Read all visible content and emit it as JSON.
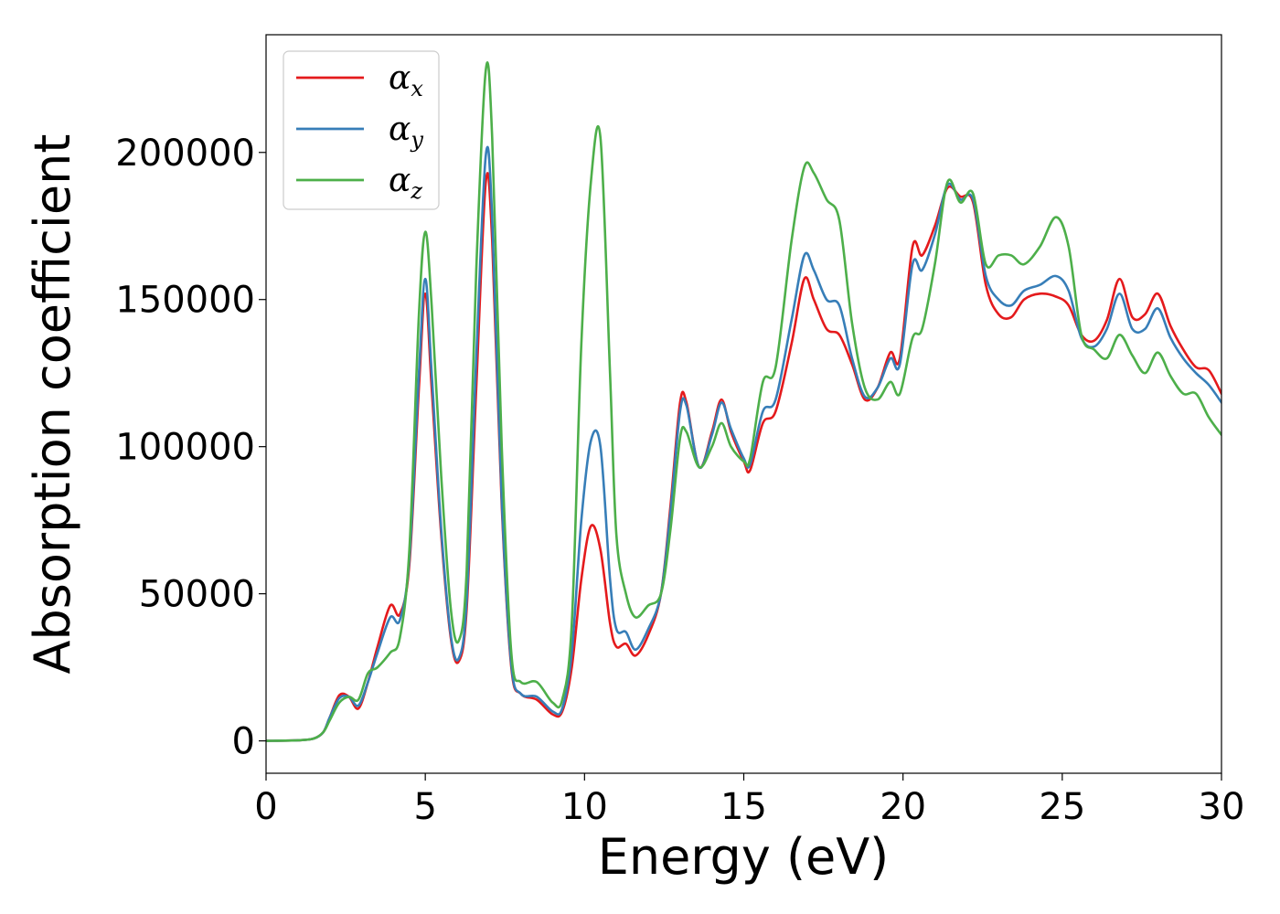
{
  "chart_data": {
    "type": "line",
    "title": "",
    "xlabel": "Energy (eV)",
    "ylabel": "Absorption coefficient",
    "xlim": [
      0,
      30
    ],
    "ylim": [
      -11000,
      240000
    ],
    "x_ticks": [
      0,
      5,
      10,
      15,
      20,
      25,
      30
    ],
    "x_tick_labels": [
      "0",
      "5",
      "10",
      "15",
      "20",
      "25",
      "30"
    ],
    "y_ticks": [
      0,
      50000,
      100000,
      150000,
      200000
    ],
    "y_tick_labels": [
      "0",
      "50000",
      "100000",
      "150000",
      "200000"
    ],
    "grid": false,
    "legend_position": "top-left",
    "series": [
      {
        "name": "α",
        "subscript": "x",
        "color": "#e41a1c",
        "points": [
          [
            0,
            0
          ],
          [
            1,
            200
          ],
          [
            1.5,
            800
          ],
          [
            1.8,
            3000
          ],
          [
            2,
            8000
          ],
          [
            2.3,
            15500
          ],
          [
            2.6,
            15000
          ],
          [
            2.9,
            11000
          ],
          [
            3.2,
            20000
          ],
          [
            3.5,
            32000
          ],
          [
            3.9,
            46000
          ],
          [
            4.2,
            43000
          ],
          [
            4.5,
            60000
          ],
          [
            4.8,
            120000
          ],
          [
            5.0,
            152000
          ],
          [
            5.2,
            120000
          ],
          [
            5.5,
            70000
          ],
          [
            5.8,
            35000
          ],
          [
            6.05,
            27000
          ],
          [
            6.3,
            45000
          ],
          [
            6.6,
            120000
          ],
          [
            6.9,
            190000
          ],
          [
            7.1,
            170000
          ],
          [
            7.4,
            80000
          ],
          [
            7.7,
            25000
          ],
          [
            8.0,
            16000
          ],
          [
            8.5,
            14000
          ],
          [
            9.0,
            9000
          ],
          [
            9.3,
            10000
          ],
          [
            9.6,
            25000
          ],
          [
            9.9,
            55000
          ],
          [
            10.2,
            73000
          ],
          [
            10.5,
            65000
          ],
          [
            10.8,
            40000
          ],
          [
            11.0,
            32000
          ],
          [
            11.3,
            33000
          ],
          [
            11.6,
            29000
          ],
          [
            12.0,
            36000
          ],
          [
            12.4,
            50000
          ],
          [
            12.7,
            80000
          ],
          [
            13.0,
            115000
          ],
          [
            13.2,
            115000
          ],
          [
            13.6,
            93000
          ],
          [
            14.0,
            105000
          ],
          [
            14.3,
            116000
          ],
          [
            14.6,
            105000
          ],
          [
            15.0,
            95000
          ],
          [
            15.2,
            92000
          ],
          [
            15.6,
            108000
          ],
          [
            16.0,
            112000
          ],
          [
            16.5,
            135000
          ],
          [
            16.9,
            157000
          ],
          [
            17.2,
            150000
          ],
          [
            17.6,
            140000
          ],
          [
            18.0,
            138000
          ],
          [
            18.4,
            128000
          ],
          [
            18.8,
            116000
          ],
          [
            19.2,
            120000
          ],
          [
            19.6,
            132000
          ],
          [
            19.9,
            130000
          ],
          [
            20.3,
            168000
          ],
          [
            20.6,
            165000
          ],
          [
            21.0,
            175000
          ],
          [
            21.4,
            188000
          ],
          [
            21.8,
            185000
          ],
          [
            22.2,
            183000
          ],
          [
            22.6,
            155000
          ],
          [
            23.0,
            145000
          ],
          [
            23.4,
            144000
          ],
          [
            23.8,
            150000
          ],
          [
            24.3,
            152000
          ],
          [
            24.8,
            151000
          ],
          [
            25.2,
            148000
          ],
          [
            25.6,
            138000
          ],
          [
            26.0,
            136000
          ],
          [
            26.4,
            143000
          ],
          [
            26.8,
            157000
          ],
          [
            27.2,
            144000
          ],
          [
            27.6,
            145000
          ],
          [
            28.0,
            152000
          ],
          [
            28.4,
            141000
          ],
          [
            28.8,
            133000
          ],
          [
            29.2,
            127000
          ],
          [
            29.6,
            126000
          ],
          [
            30.0,
            118000
          ]
        ]
      },
      {
        "name": "α",
        "subscript": "y",
        "color": "#377eb8",
        "points": [
          [
            0,
            0
          ],
          [
            1,
            200
          ],
          [
            1.5,
            800
          ],
          [
            1.8,
            3000
          ],
          [
            2,
            8000
          ],
          [
            2.3,
            14500
          ],
          [
            2.6,
            15000
          ],
          [
            2.9,
            12000
          ],
          [
            3.2,
            20000
          ],
          [
            3.5,
            30000
          ],
          [
            3.9,
            42000
          ],
          [
            4.2,
            41000
          ],
          [
            4.5,
            62000
          ],
          [
            4.8,
            125000
          ],
          [
            5.0,
            157000
          ],
          [
            5.2,
            125000
          ],
          [
            5.5,
            72000
          ],
          [
            5.8,
            36000
          ],
          [
            6.05,
            28000
          ],
          [
            6.3,
            48000
          ],
          [
            6.6,
            130000
          ],
          [
            6.9,
            199000
          ],
          [
            7.1,
            178000
          ],
          [
            7.4,
            82000
          ],
          [
            7.7,
            26000
          ],
          [
            8.0,
            16000
          ],
          [
            8.5,
            15000
          ],
          [
            9.0,
            10000
          ],
          [
            9.3,
            11000
          ],
          [
            9.6,
            30000
          ],
          [
            9.9,
            75000
          ],
          [
            10.2,
            102000
          ],
          [
            10.5,
            100000
          ],
          [
            10.8,
            55000
          ],
          [
            11.0,
            38000
          ],
          [
            11.3,
            37000
          ],
          [
            11.6,
            31000
          ],
          [
            12.0,
            38000
          ],
          [
            12.4,
            50000
          ],
          [
            12.7,
            78000
          ],
          [
            13.0,
            112000
          ],
          [
            13.2,
            114000
          ],
          [
            13.6,
            93000
          ],
          [
            14.0,
            104000
          ],
          [
            14.3,
            115000
          ],
          [
            14.6,
            106000
          ],
          [
            15.0,
            96000
          ],
          [
            15.2,
            94000
          ],
          [
            15.6,
            112000
          ],
          [
            16.0,
            116000
          ],
          [
            16.5,
            143000
          ],
          [
            16.9,
            165000
          ],
          [
            17.2,
            160000
          ],
          [
            17.6,
            150000
          ],
          [
            18.0,
            148000
          ],
          [
            18.4,
            130000
          ],
          [
            18.8,
            117000
          ],
          [
            19.2,
            120000
          ],
          [
            19.6,
            130000
          ],
          [
            19.9,
            128000
          ],
          [
            20.3,
            162000
          ],
          [
            20.6,
            160000
          ],
          [
            21.0,
            172000
          ],
          [
            21.4,
            189000
          ],
          [
            21.8,
            184000
          ],
          [
            22.2,
            184000
          ],
          [
            22.6,
            158000
          ],
          [
            23.0,
            150000
          ],
          [
            23.4,
            148000
          ],
          [
            23.8,
            153000
          ],
          [
            24.3,
            155000
          ],
          [
            24.8,
            158000
          ],
          [
            25.2,
            153000
          ],
          [
            25.6,
            137000
          ],
          [
            26.0,
            134000
          ],
          [
            26.4,
            140000
          ],
          [
            26.8,
            152000
          ],
          [
            27.2,
            140000
          ],
          [
            27.6,
            140000
          ],
          [
            28.0,
            147000
          ],
          [
            28.4,
            137000
          ],
          [
            28.8,
            130000
          ],
          [
            29.2,
            125000
          ],
          [
            29.6,
            121000
          ],
          [
            30.0,
            115000
          ]
        ]
      },
      {
        "name": "α",
        "subscript": "z",
        "color": "#4daf4a",
        "points": [
          [
            0,
            0
          ],
          [
            1,
            200
          ],
          [
            1.5,
            800
          ],
          [
            1.8,
            3000
          ],
          [
            2,
            7000
          ],
          [
            2.3,
            13000
          ],
          [
            2.6,
            15000
          ],
          [
            2.9,
            14000
          ],
          [
            3.2,
            23000
          ],
          [
            3.5,
            25000
          ],
          [
            3.9,
            30000
          ],
          [
            4.2,
            35000
          ],
          [
            4.5,
            65000
          ],
          [
            4.8,
            145000
          ],
          [
            5.0,
            173000
          ],
          [
            5.2,
            148000
          ],
          [
            5.5,
            90000
          ],
          [
            5.8,
            45000
          ],
          [
            6.05,
            34000
          ],
          [
            6.3,
            58000
          ],
          [
            6.6,
            160000
          ],
          [
            6.9,
            228000
          ],
          [
            7.1,
            205000
          ],
          [
            7.4,
            100000
          ],
          [
            7.7,
            30000
          ],
          [
            8.0,
            20000
          ],
          [
            8.5,
            20000
          ],
          [
            9.0,
            13000
          ],
          [
            9.3,
            14000
          ],
          [
            9.6,
            40000
          ],
          [
            9.9,
            135000
          ],
          [
            10.2,
            190000
          ],
          [
            10.5,
            205000
          ],
          [
            10.8,
            125000
          ],
          [
            11.0,
            70000
          ],
          [
            11.3,
            50000
          ],
          [
            11.6,
            42000
          ],
          [
            12.0,
            46000
          ],
          [
            12.4,
            50000
          ],
          [
            12.7,
            72000
          ],
          [
            13.0,
            103000
          ],
          [
            13.2,
            105000
          ],
          [
            13.6,
            93000
          ],
          [
            14.0,
            100000
          ],
          [
            14.3,
            108000
          ],
          [
            14.6,
            100000
          ],
          [
            15.0,
            95000
          ],
          [
            15.2,
            96000
          ],
          [
            15.6,
            122000
          ],
          [
            16.0,
            127000
          ],
          [
            16.5,
            170000
          ],
          [
            16.9,
            195000
          ],
          [
            17.2,
            193000
          ],
          [
            17.6,
            184000
          ],
          [
            18.0,
            177000
          ],
          [
            18.4,
            142000
          ],
          [
            18.8,
            120000
          ],
          [
            19.2,
            116000
          ],
          [
            19.6,
            122000
          ],
          [
            19.9,
            118000
          ],
          [
            20.3,
            137000
          ],
          [
            20.6,
            140000
          ],
          [
            21.0,
            162000
          ],
          [
            21.4,
            190000
          ],
          [
            21.8,
            183000
          ],
          [
            22.2,
            186000
          ],
          [
            22.6,
            162000
          ],
          [
            23.0,
            165000
          ],
          [
            23.4,
            165000
          ],
          [
            23.8,
            162000
          ],
          [
            24.3,
            168000
          ],
          [
            24.8,
            178000
          ],
          [
            25.2,
            168000
          ],
          [
            25.6,
            138000
          ],
          [
            26.0,
            133000
          ],
          [
            26.4,
            130000
          ],
          [
            26.8,
            138000
          ],
          [
            27.2,
            131000
          ],
          [
            27.6,
            125000
          ],
          [
            28.0,
            132000
          ],
          [
            28.4,
            124000
          ],
          [
            28.8,
            118000
          ],
          [
            29.2,
            118000
          ],
          [
            29.6,
            110000
          ],
          [
            30.0,
            104000
          ]
        ]
      }
    ]
  }
}
